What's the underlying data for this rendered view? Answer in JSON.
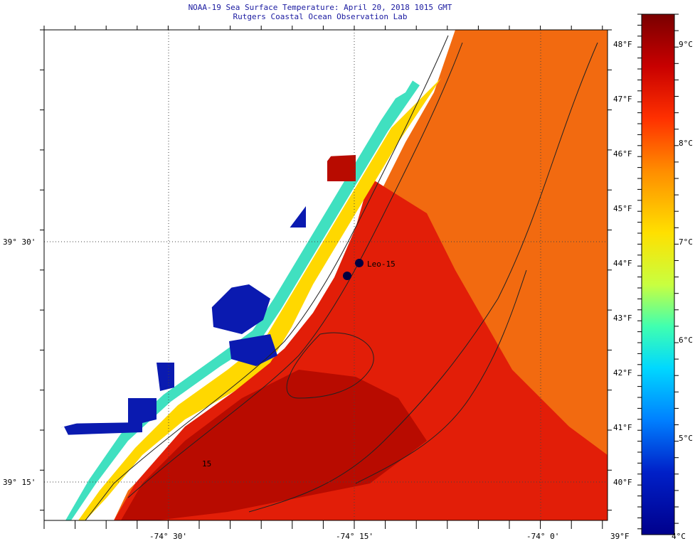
{
  "title": "NOAA-19 Sea Surface Temperature:  April 20, 2018 1015 GMT",
  "subtitle": "Rutgers Coastal Ocean Observation Lab",
  "map": {
    "lon_ticks": [
      "-74° 30'",
      "-74° 15'",
      "-74° 0'"
    ],
    "lat_ticks": [
      "39° 30'",
      "39° 15'"
    ],
    "station_label": "Leo-15",
    "contour_label": "15"
  },
  "colorbar": {
    "fahrenheit_labels": [
      "48°F",
      "47°F",
      "46°F",
      "45°F",
      "44°F",
      "43°F",
      "42°F",
      "41°F",
      "40°F",
      "39°F"
    ],
    "celsius_labels": [
      "9°C",
      "8°C",
      "7°C",
      "6°C",
      "5°C",
      "4°C"
    ],
    "colors": [
      "#7a0000",
      "#c80000",
      "#ff3000",
      "#ff8c00",
      "#ffe000",
      "#c8ff40",
      "#40ffb0",
      "#00d8ff",
      "#0080ff",
      "#0020c8",
      "#00008c"
    ]
  }
}
